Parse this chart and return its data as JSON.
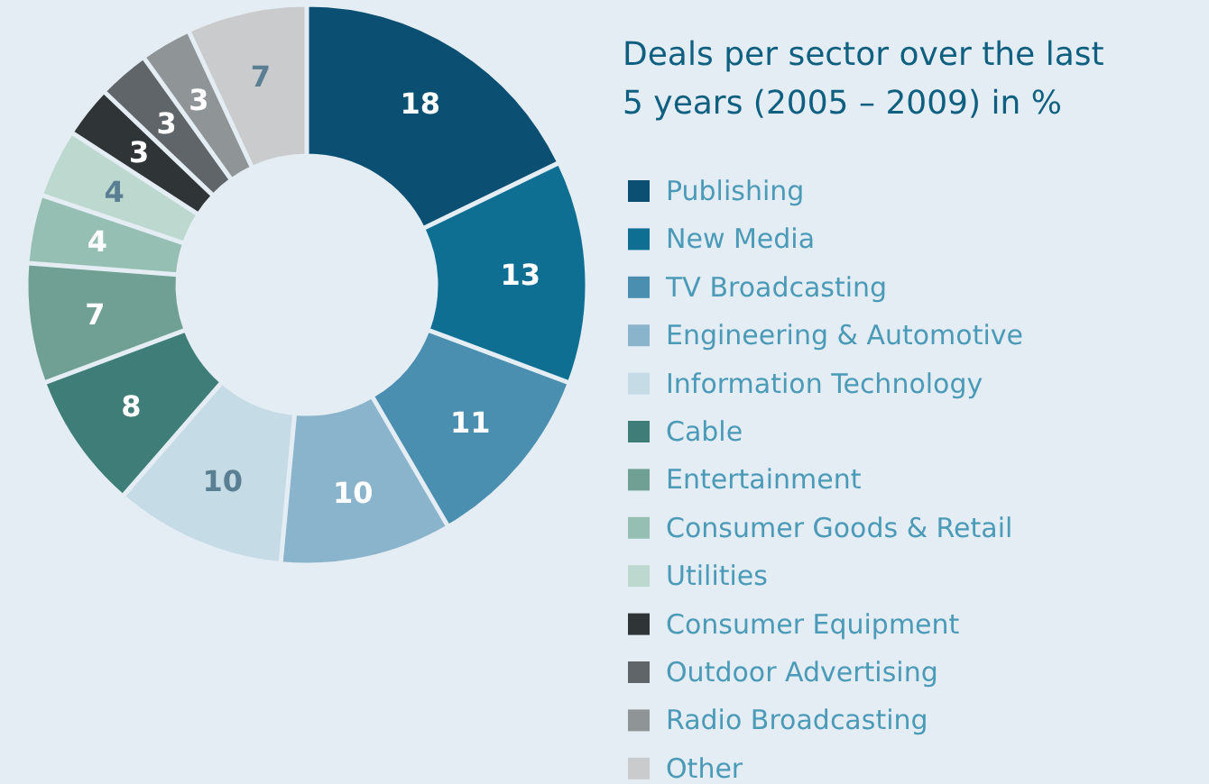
{
  "chart_data": {
    "type": "donut",
    "title": "Deals per sector over the last 5 years (2005 – 2009) in %",
    "categories": [
      "Publishing",
      "New Media",
      "TV Broadcasting",
      "Engineering & Automotive",
      "Information Technology",
      "Cable",
      "Entertainment",
      "Consumer Goods & Retail",
      "Utilities",
      "Consumer Equipment",
      "Outdoor Advertising",
      "Radio Broadcasting",
      "Other"
    ],
    "values": [
      18,
      13,
      11,
      10,
      10,
      8,
      7,
      4,
      4,
      3,
      3,
      3,
      7
    ],
    "colors": [
      "#0b4f73",
      "#0e6f93",
      "#4a8fb0",
      "#8ab4cc",
      "#c5dbe6",
      "#3f7d78",
      "#6fa093",
      "#96bfb3",
      "#bcd8cf",
      "#2f3436",
      "#5f6568",
      "#8f9597",
      "#c9cbcc"
    ],
    "data_labels": true,
    "legend": "right"
  }
}
